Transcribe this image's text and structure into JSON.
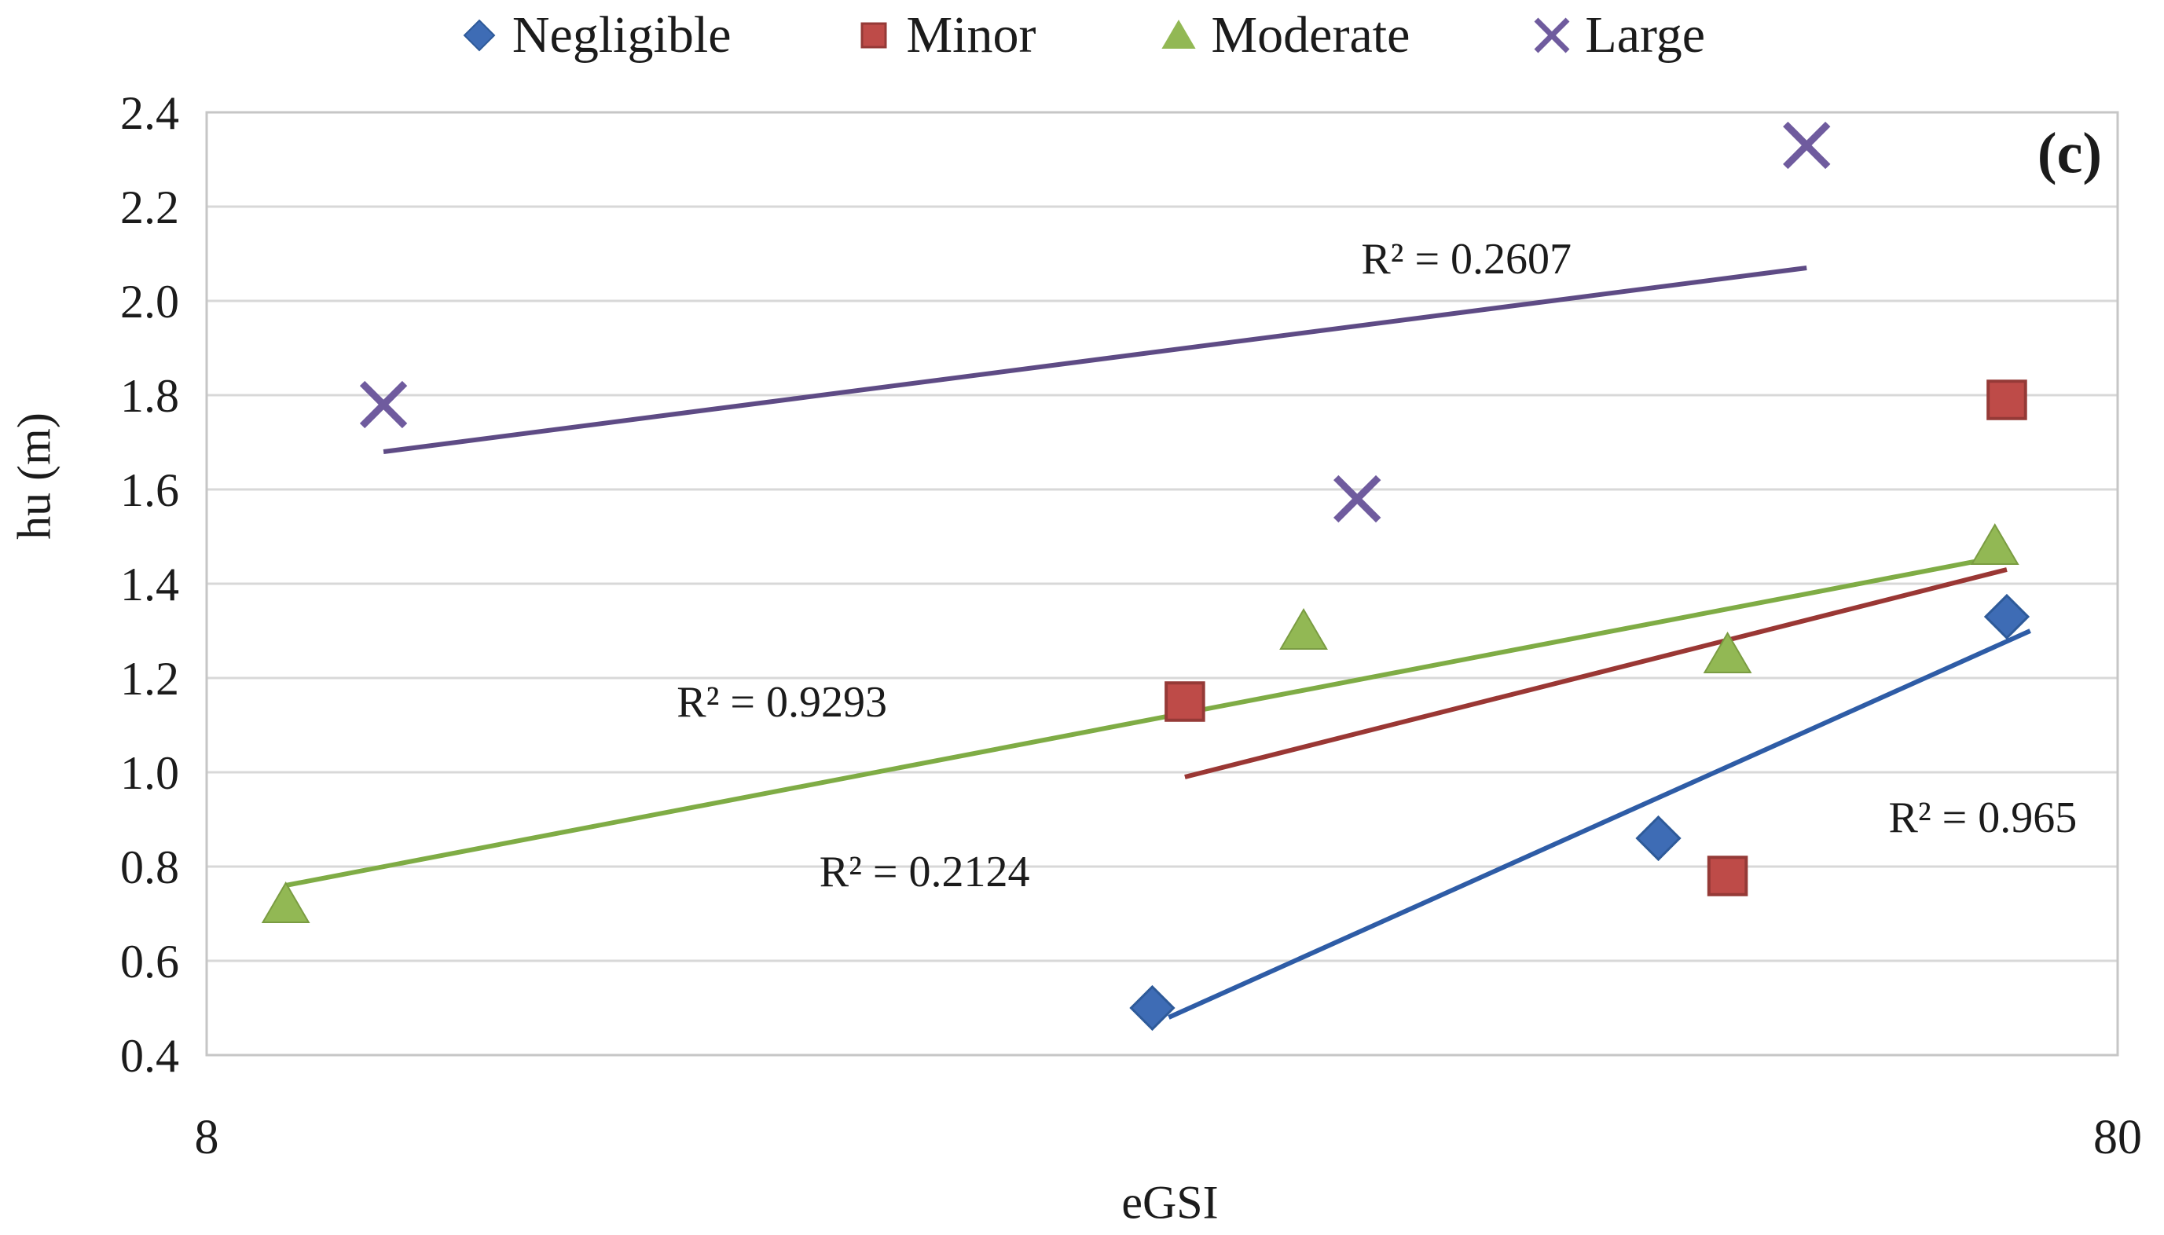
{
  "figure": {
    "panel_label": "(c)",
    "background": "#ffffff"
  },
  "chart_data": {
    "type": "scatter",
    "title": "",
    "xlabel": "eGSI",
    "ylabel": "hu (m)",
    "x_axis": {
      "scale": "log",
      "min": 8,
      "max": 80,
      "tick_labels": [
        "8",
        "80"
      ]
    },
    "y_axis": {
      "min": 0.4,
      "max": 2.4,
      "tick_step": 0.2,
      "tick_labels": [
        "0.4",
        "0.6",
        "0.8",
        "1.0",
        "1.2",
        "1.4",
        "1.6",
        "1.8",
        "2.0",
        "2.2",
        "2.4"
      ]
    },
    "grid": "horizontal",
    "legend_position": "top",
    "series": [
      {
        "name": "Negligible",
        "marker": "diamond",
        "marker_color": "#3E6CB5",
        "marker_edge": "#2E5A99",
        "line_color": "#2E5CA6",
        "points": [
          [
            25,
            0.5
          ],
          [
            46,
            0.86
          ],
          [
            70,
            1.33
          ]
        ],
        "trendline": {
          "x1": 25.5,
          "y1": 0.48,
          "x2": 72,
          "y2": 1.3
        },
        "r2_label": "R² = 0.965",
        "r2_pos": [
          68,
          0.905
        ]
      },
      {
        "name": "Minor",
        "marker": "square",
        "marker_color": "#BE4B48",
        "marker_edge": "#953A37",
        "line_color": "#9A3734",
        "points": [
          [
            26,
            1.15
          ],
          [
            50,
            0.78
          ],
          [
            70,
            1.79
          ]
        ],
        "trendline": {
          "x1": 26,
          "y1": 0.99,
          "x2": 70,
          "y2": 1.43
        },
        "r2_label": "R² = 0.2124",
        "r2_pos": [
          19,
          0.79
        ]
      },
      {
        "name": "Moderate",
        "marker": "triangle",
        "marker_color": "#92B854",
        "marker_edge": "#7A9C42",
        "line_color": "#7FAC45",
        "points": [
          [
            8.8,
            0.72
          ],
          [
            30,
            1.3
          ],
          [
            50,
            1.25
          ],
          [
            69,
            1.48
          ]
        ],
        "trendline": {
          "x1": 8.8,
          "y1": 0.76,
          "x2": 70,
          "y2": 1.46
        },
        "r2_label": "R² = 0.9293",
        "r2_pos": [
          16,
          1.15
        ]
      },
      {
        "name": "Large",
        "marker": "x",
        "marker_color": "#6F5B9E",
        "marker_edge": "#6F5B9E",
        "line_color": "#5E4B85",
        "points": [
          [
            9.9,
            1.78
          ],
          [
            32,
            1.58
          ],
          [
            55,
            2.33
          ]
        ],
        "trendline": {
          "x1": 9.9,
          "y1": 1.68,
          "x2": 55,
          "y2": 2.07
        },
        "r2_label": "R² = 0.2607",
        "r2_pos": [
          36.5,
          2.09
        ]
      }
    ],
    "style_colors": {
      "gridline": "#D8D8D8",
      "plot_border": "#C6C6C6",
      "text": "#1b1b1b"
    }
  }
}
